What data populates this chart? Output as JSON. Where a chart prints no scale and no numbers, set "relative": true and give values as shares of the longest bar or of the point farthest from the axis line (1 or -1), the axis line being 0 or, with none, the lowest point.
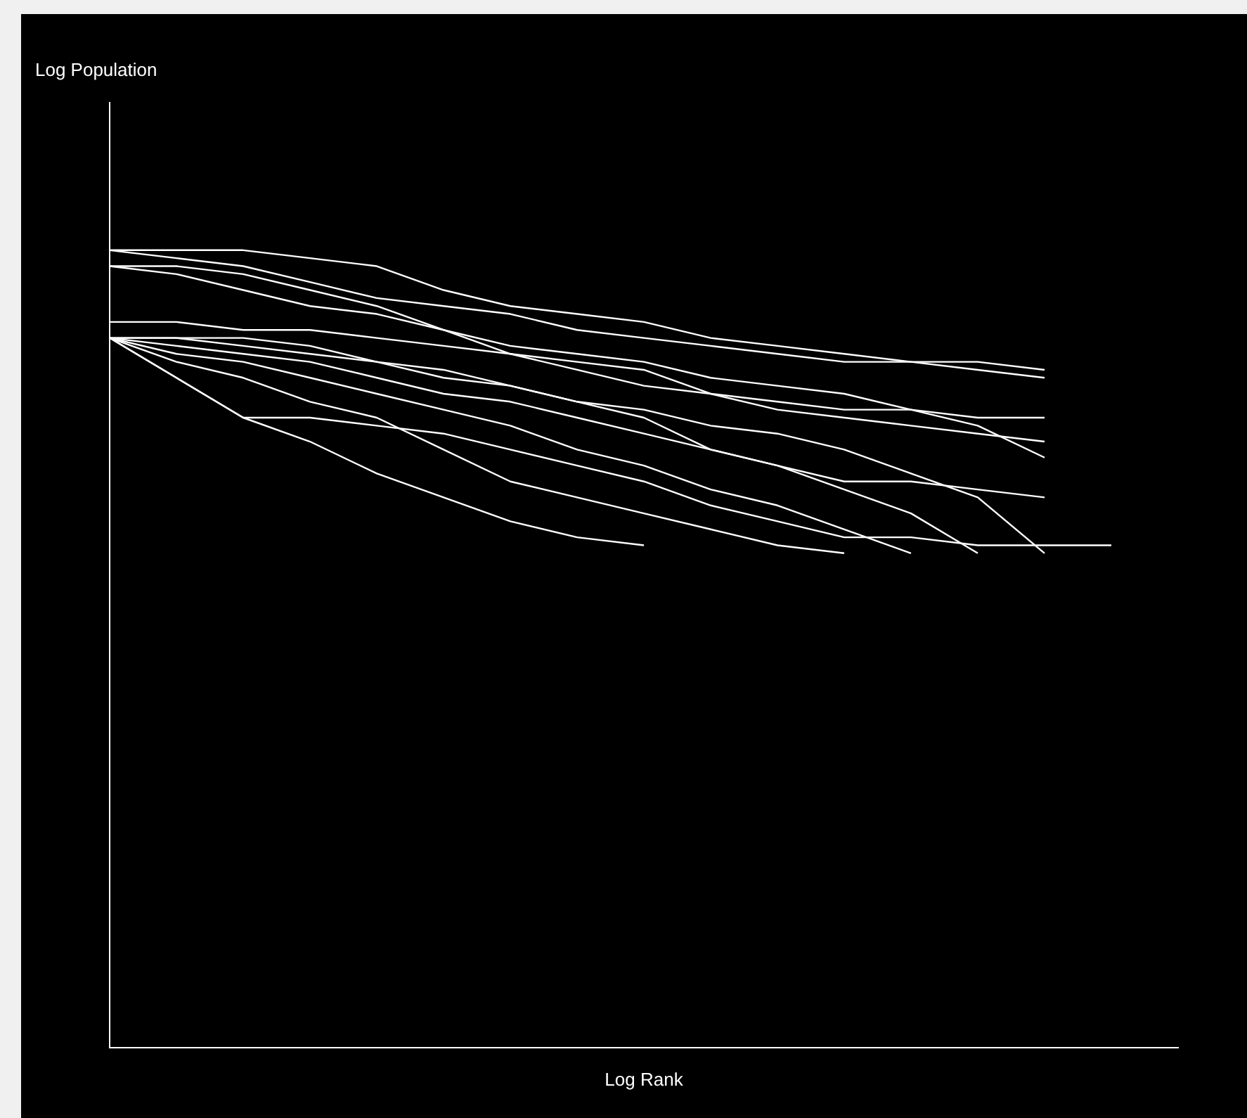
{
  "chart_data": {
    "type": "line",
    "relative": true,
    "xlabel": "Log Rank",
    "annotations": [
      "Log Population"
    ],
    "grid": false,
    "legend": false,
    "marker": "none",
    "line_style": "solid",
    "tick_labels": false,
    "categories": [
      null,
      null,
      null,
      null,
      null,
      null,
      null,
      null,
      null,
      null,
      null,
      null,
      null,
      null,
      null,
      null,
      null
    ],
    "series": [
      {
        "color": "#ffffff",
        "values": [
          1,
          1,
          1,
          0.99,
          0.98,
          0.95,
          0.93,
          0.92,
          0.91,
          0.89,
          0.88,
          0.87,
          0.86,
          0.86,
          0.85,
          null,
          null
        ]
      },
      {
        "color": "#ffffff",
        "values": [
          0.98,
          0.98,
          0.97,
          0.95,
          0.93,
          0.9,
          0.87,
          0.85,
          0.83,
          0.82,
          0.81,
          0.8,
          0.8,
          0.79,
          0.79,
          null,
          null
        ]
      },
      {
        "color": "#ffffff",
        "values": [
          0.91,
          0.91,
          0.9,
          0.9,
          0.89,
          0.88,
          0.87,
          0.86,
          0.85,
          0.82,
          0.8,
          0.79,
          0.78,
          0.77,
          0.76,
          null,
          null
        ]
      },
      {
        "color": "#ffffff",
        "values": [
          0.89,
          0.89,
          0.89,
          0.88,
          0.86,
          0.85,
          0.83,
          0.81,
          0.79,
          0.75,
          0.73,
          0.71,
          0.71,
          0.7,
          0.69,
          null,
          null
        ]
      },
      {
        "color": "#ffffff",
        "values": [
          0.89,
          0.84,
          0.79,
          0.79,
          0.78,
          0.77,
          0.75,
          0.73,
          0.71,
          0.68,
          0.66,
          0.64,
          0.64,
          0.63,
          0.63,
          0.63,
          null
        ]
      },
      {
        "color": "#ffffff",
        "values": [
          0.89,
          0.84,
          0.79,
          0.76,
          0.72,
          0.69,
          0.66,
          0.64,
          0.63,
          null,
          null,
          null,
          null,
          null,
          null,
          null,
          null
        ]
      },
      {
        "color": "#ffffff",
        "values": [
          0.89,
          0.86,
          0.84,
          0.81,
          0.79,
          0.75,
          0.71,
          0.69,
          0.67,
          0.65,
          0.63,
          0.62,
          null,
          null,
          null,
          null,
          null
        ]
      },
      {
        "color": "#ffffff",
        "values": [
          0.89,
          0.87,
          0.86,
          0.84,
          0.82,
          0.8,
          0.78,
          0.75,
          0.73,
          0.7,
          0.68,
          0.65,
          0.62,
          null,
          null,
          null,
          null
        ]
      },
      {
        "color": "#ffffff",
        "values": [
          0.89,
          0.88,
          0.87,
          0.86,
          0.84,
          0.82,
          0.81,
          0.79,
          0.77,
          0.75,
          0.73,
          0.7,
          0.67,
          0.62,
          null,
          null,
          null
        ]
      },
      {
        "color": "#ffffff",
        "values": [
          0.89,
          0.89,
          0.88,
          0.87,
          0.86,
          0.84,
          0.83,
          0.81,
          0.8,
          0.78,
          0.77,
          0.75,
          0.72,
          0.69,
          0.62,
          null,
          null
        ]
      },
      {
        "color": "#ffffff",
        "values": [
          0.98,
          0.97,
          0.95,
          0.93,
          0.92,
          0.9,
          0.88,
          0.87,
          0.86,
          0.84,
          0.83,
          0.82,
          0.8,
          0.78,
          0.74,
          null,
          null
        ]
      },
      {
        "color": "#ffffff",
        "values": [
          1,
          0.99,
          0.98,
          0.96,
          0.94,
          0.93,
          0.92,
          0.9,
          0.89,
          0.88,
          0.87,
          0.86,
          0.86,
          0.85,
          0.84,
          null,
          null
        ]
      }
    ]
  }
}
